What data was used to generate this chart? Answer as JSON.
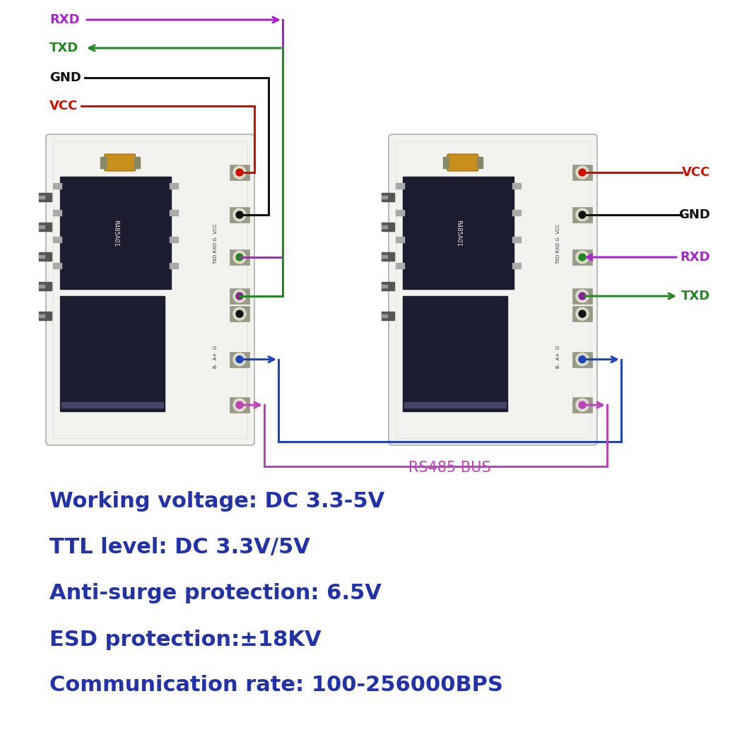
{
  "bg_color": "#ffffff",
  "wire_purple": "#aa22cc",
  "wire_green": "#228822",
  "wire_black": "#111111",
  "wire_red": "#cc1100",
  "wire_blue": "#2244bb",
  "wire_pink": "#bb44bb",
  "text_blue": "#2233aa",
  "spec_lines": [
    "Working voltage: DC 3.3-5V",
    "TTL level: DC 3.3V/5V",
    "Anti-surge protection: 6.5V",
    "ESD protection:±18KV",
    "Communication rate: 100-256000BPS"
  ],
  "rs485_label": "RS485 BUS",
  "lw": 2.2,
  "board_fill": "#f2f2ee",
  "board_edge": "#bbbbbb",
  "chip_dark": "#1c1c30",
  "chip_mid": "#2a2a40",
  "orange_comp": "#c8901a",
  "pad_red": "#cc1100",
  "pad_black": "#111111",
  "pad_green": "#228822",
  "pad_purple": "#882299",
  "pad_blue": "#2244bb",
  "pad_pink": "#bb44bb",
  "rxd_label": "RXD",
  "txd_label": "TXD",
  "gnd_label": "GND",
  "vcc_label": "VCC"
}
